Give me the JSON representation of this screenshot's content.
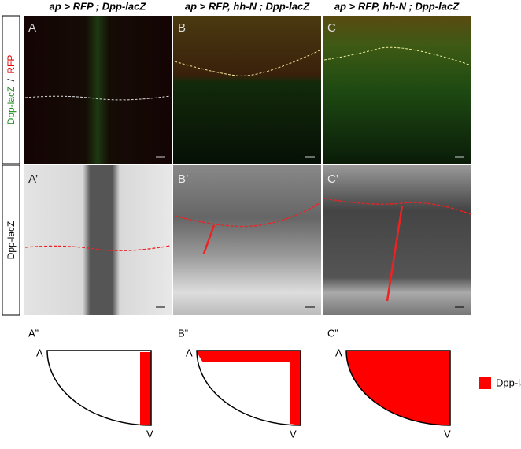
{
  "columns": [
    "ap > RFP ; Dpp-lacZ",
    "ap > RFP, hh-N ; Dpp-lacZ",
    "ap > RFP, hh-N ; Dpp-lacZ"
  ],
  "row_labels": {
    "top": {
      "green": "Dpp-lacZ",
      "separator": "/",
      "red": "RFP"
    },
    "bottom": "Dpp-lacZ"
  },
  "panels": {
    "top": [
      "A",
      "B",
      "C"
    ],
    "bottom": [
      "A’",
      "B’",
      "C’"
    ]
  },
  "schematics": [
    {
      "label": "A”",
      "anterior": "A",
      "ventral": "V"
    },
    {
      "label": "B”",
      "anterior": "A",
      "ventral": "V"
    },
    {
      "label": "C”",
      "anterior": "A",
      "ventral": "V"
    }
  ],
  "legend": "Dpp-lacZ"
}
